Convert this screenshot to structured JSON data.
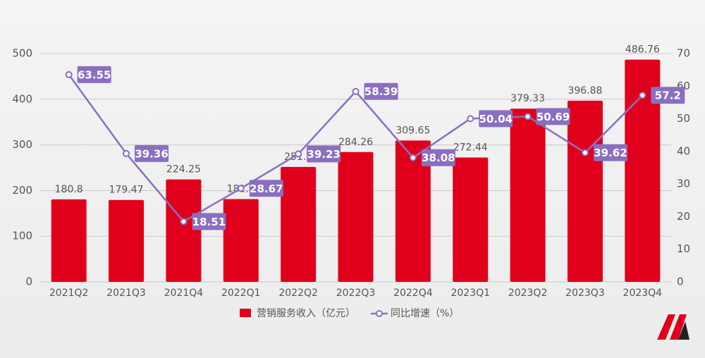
{
  "chart_data": {
    "type": "bar_line",
    "categories": [
      "2021Q2",
      "2021Q3",
      "2021Q4",
      "2022Q1",
      "2022Q2",
      "2022Q3",
      "2022Q4",
      "2023Q1",
      "2023Q2",
      "2023Q3",
      "2023Q4"
    ],
    "series": [
      {
        "name": "营销服务收入（亿元）",
        "color": "#e0001b",
        "type": "bar",
        "values": [
          180.8,
          179.47,
          224.25,
          181.3,
          251.7,
          284.26,
          309.65,
          272.44,
          379.33,
          396.88,
          486.76
        ]
      },
      {
        "name": "同比增速（%）",
        "color": "#8a6fc0",
        "type": "line",
        "axis": "y2",
        "values": [
          63.55,
          39.36,
          18.51,
          28.67,
          39.23,
          58.39,
          38.08,
          50.04,
          50.69,
          39.62,
          57.2
        ]
      }
    ],
    "ylim": [
      0,
      500
    ],
    "yticks": [
      0,
      100,
      200,
      300,
      400,
      500
    ],
    "y2lim": [
      0,
      70
    ],
    "y2ticks": [
      0,
      10,
      20,
      30,
      40,
      50,
      60,
      70
    ],
    "grid": true
  }
}
